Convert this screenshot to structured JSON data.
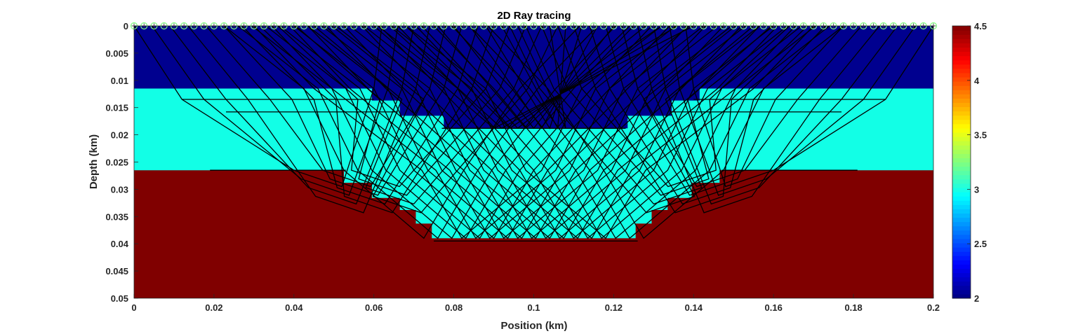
{
  "chart_data": {
    "type": "heatmap",
    "title": "2D Ray tracing",
    "xlabel": "Position (km)",
    "ylabel": "Depth (km)",
    "xlim": [
      0,
      0.2
    ],
    "ylim": [
      0,
      0.05
    ],
    "y_reversed": true,
    "xticks": [
      0,
      0.02,
      0.04,
      0.06,
      0.08,
      0.1,
      0.12,
      0.14,
      0.16,
      0.18,
      0.2
    ],
    "xtick_labels": [
      "0",
      "0.02",
      "0.04",
      "0.06",
      "0.08",
      "0.1",
      "0.12",
      "0.14",
      "0.16",
      "0.18",
      "0.2"
    ],
    "yticks": [
      0,
      0.005,
      0.01,
      0.015,
      0.02,
      0.025,
      0.03,
      0.035,
      0.04,
      0.045,
      0.05
    ],
    "ytick_labels": [
      "0",
      "0.005",
      "0.01",
      "0.015",
      "0.02",
      "0.025",
      "0.03",
      "0.035",
      "0.04",
      "0.045",
      "0.05"
    ],
    "colorbar": {
      "colormap": "jet",
      "range": [
        2,
        4.5
      ],
      "ticks": [
        2,
        2.5,
        3,
        3.5,
        4,
        4.5
      ],
      "tick_labels": [
        "2",
        "2.5",
        "3",
        "3.5",
        "4",
        "4.5"
      ]
    },
    "layers": [
      {
        "velocity": 2.0,
        "color": "#00008f",
        "top_depth": 0.0,
        "base_profile": [
          [
            0.0595,
            0.0115
          ],
          [
            0.0595,
            0.0137
          ],
          [
            0.0665,
            0.0137
          ],
          [
            0.0665,
            0.0165
          ],
          [
            0.0775,
            0.0165
          ],
          [
            0.0775,
            0.0188
          ],
          [
            0.1235,
            0.0188
          ],
          [
            0.1235,
            0.0165
          ],
          [
            0.1345,
            0.0165
          ],
          [
            0.1345,
            0.0137
          ],
          [
            0.1415,
            0.0137
          ],
          [
            0.1415,
            0.0115
          ]
        ],
        "base_depth_outside": 0.0115
      },
      {
        "velocity": 2.9,
        "color": "#12ffe6",
        "base_profile": [
          [
            0.0,
            0.0265
          ],
          [
            0.0525,
            0.0265
          ],
          [
            0.0525,
            0.0288
          ],
          [
            0.0595,
            0.0288
          ],
          [
            0.0595,
            0.0316
          ],
          [
            0.0665,
            0.0316
          ],
          [
            0.0665,
            0.0338
          ],
          [
            0.0705,
            0.0338
          ],
          [
            0.0705,
            0.0363
          ],
          [
            0.0745,
            0.0363
          ],
          [
            0.0745,
            0.039
          ],
          [
            0.1255,
            0.039
          ],
          [
            0.1255,
            0.0363
          ],
          [
            0.1295,
            0.0363
          ],
          [
            0.1295,
            0.0338
          ],
          [
            0.1335,
            0.0338
          ],
          [
            0.1335,
            0.0316
          ],
          [
            0.1395,
            0.0316
          ],
          [
            0.1395,
            0.0288
          ],
          [
            0.1465,
            0.0288
          ],
          [
            0.1465,
            0.0265
          ],
          [
            0.2,
            0.0265
          ]
        ]
      },
      {
        "velocity": 4.5,
        "color": "#800000",
        "bottom_depth": 0.05
      }
    ],
    "receivers": {
      "count": 81,
      "x_start": 0.0,
      "x_end": 0.2,
      "depth": 0.0,
      "marker": "circle-star",
      "color": "#80ff80"
    },
    "rays": {
      "color": "#000000",
      "count": 160,
      "description": "black ray paths from surface sources to the surface receivers"
    }
  }
}
